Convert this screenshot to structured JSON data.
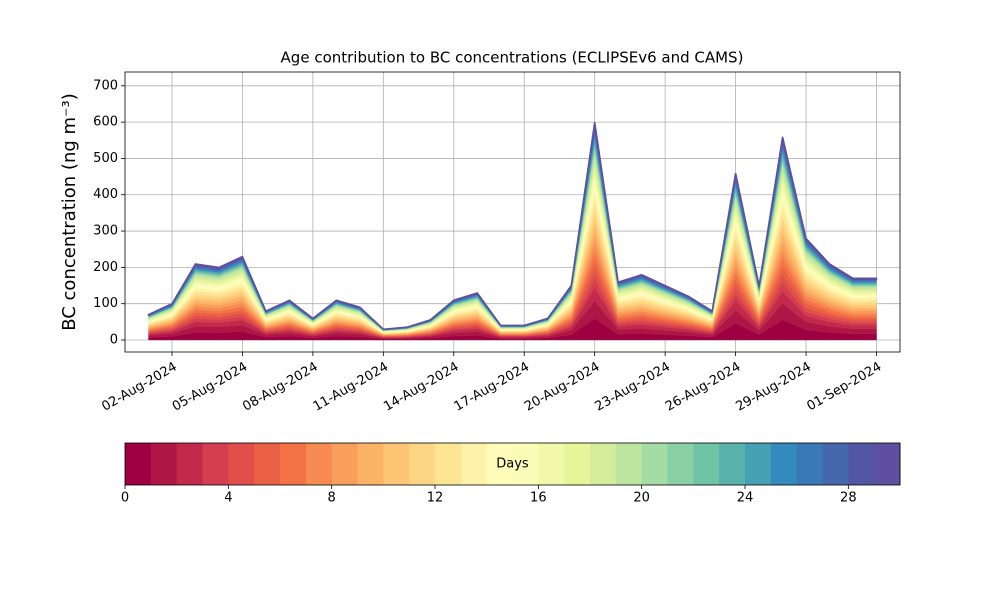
{
  "chart_data": {
    "type": "stacked_area",
    "title": "Age contribution to BC concentrations (ECLIPSEv6 and CAMS)",
    "y_label": "BC concentration (ng m⁻³)",
    "x": [
      "2024-08-01",
      "2024-08-02",
      "2024-08-03",
      "2024-08-04",
      "2024-08-05",
      "2024-08-06",
      "2024-08-07",
      "2024-08-08",
      "2024-08-09",
      "2024-08-10",
      "2024-08-11",
      "2024-08-12",
      "2024-08-13",
      "2024-08-14",
      "2024-08-15",
      "2024-08-16",
      "2024-08-17",
      "2024-08-18",
      "2024-08-19",
      "2024-08-20",
      "2024-08-21",
      "2024-08-22",
      "2024-08-23",
      "2024-08-24",
      "2024-08-25",
      "2024-08-26",
      "2024-08-27",
      "2024-08-28",
      "2024-08-29",
      "2024-08-30",
      "2024-08-31",
      "2024-09-01"
    ],
    "xlim": [
      "2024-07-31",
      "2024-09-02"
    ],
    "xticks": [
      {
        "value": "2024-08-02",
        "label": "02-Aug-2024"
      },
      {
        "value": "2024-08-05",
        "label": "05-Aug-2024"
      },
      {
        "value": "2024-08-08",
        "label": "08-Aug-2024"
      },
      {
        "value": "2024-08-11",
        "label": "11-Aug-2024"
      },
      {
        "value": "2024-08-14",
        "label": "14-Aug-2024"
      },
      {
        "value": "2024-08-17",
        "label": "17-Aug-2024"
      },
      {
        "value": "2024-08-20",
        "label": "20-Aug-2024"
      },
      {
        "value": "2024-08-23",
        "label": "23-Aug-2024"
      },
      {
        "value": "2024-08-26",
        "label": "26-Aug-2024"
      },
      {
        "value": "2024-08-29",
        "label": "29-Aug-2024"
      },
      {
        "value": "2024-09-01",
        "label": "01-Sep-2024"
      }
    ],
    "ylim": [
      -33,
      738
    ],
    "yticks": [
      0,
      100,
      200,
      300,
      400,
      500,
      600,
      700
    ],
    "grid": true,
    "colorbar": {
      "label": "Days",
      "lim": [
        0,
        30
      ],
      "ticks": [
        0,
        4,
        8,
        12,
        16,
        20,
        24,
        28
      ]
    },
    "series": [
      {
        "color": "#9e0142",
        "values": [
          7,
          10,
          21,
          20,
          23,
          8,
          11,
          6,
          11,
          9,
          3,
          3.5,
          5.5,
          11,
          13,
          4,
          4,
          6,
          15,
          60,
          16,
          18,
          15,
          12,
          8,
          46,
          15,
          56,
          28,
          21,
          17,
          17
        ]
      },
      {
        "color": "#ae1745",
        "values": [
          5.6,
          8,
          16.8,
          16,
          18.4,
          6.4,
          8.8,
          4.8,
          8.8,
          7.2,
          2.4,
          2.8,
          4.4,
          8.8,
          10.4,
          3.2,
          3.2,
          4.8,
          12,
          48,
          12.8,
          14.4,
          12,
          9.6,
          6.4,
          36.8,
          12,
          44.8,
          22.4,
          16.8,
          13.6,
          13.6
        ]
      },
      {
        "color": "#c12a4b",
        "values": [
          4.2,
          6,
          12.6,
          12,
          13.8,
          4.8,
          6.6,
          3.6,
          6.6,
          5.4,
          1.8,
          2.1,
          3.3,
          6.6,
          7.8,
          2.4,
          2.4,
          3.6,
          9,
          36,
          9.6,
          10.8,
          9,
          7.2,
          4.8,
          27.6,
          9,
          33.6,
          16.8,
          12.6,
          10.2,
          10.2
        ]
      },
      {
        "color": "#d53e4f",
        "values": [
          2.8,
          4,
          8.4,
          8,
          9.2,
          3.2,
          4.4,
          2.4,
          4.4,
          3.6,
          1.2,
          1.4,
          2.2,
          4.4,
          5.2,
          1.6,
          1.6,
          2.4,
          6,
          24,
          6.4,
          7.2,
          6,
          4.8,
          3.2,
          18.4,
          6,
          22.4,
          11.2,
          8.4,
          6.8,
          6.8
        ]
      },
      {
        "color": "#e04f4a",
        "values": [
          2.8,
          4,
          8.4,
          8,
          9.2,
          3.2,
          4.4,
          2.4,
          4.4,
          3.6,
          1.2,
          1.4,
          2.2,
          4.4,
          5.2,
          1.6,
          1.6,
          2.4,
          6,
          24,
          6.4,
          7.2,
          6,
          4.8,
          3.2,
          18.4,
          6,
          22.4,
          11.2,
          8.4,
          6.8,
          6.8
        ]
      },
      {
        "color": "#ea6045",
        "values": [
          2.8,
          4,
          8.4,
          8,
          9.2,
          3.2,
          4.4,
          2.4,
          4.4,
          3.6,
          1.2,
          1.4,
          2.2,
          4.4,
          5.2,
          1.6,
          1.6,
          2.4,
          6,
          24,
          6.4,
          7.2,
          6,
          4.8,
          3.2,
          18.4,
          6,
          22.4,
          11.2,
          8.4,
          6.8,
          6.8
        ]
      },
      {
        "color": "#f47245",
        "values": [
          2.8,
          4,
          8.4,
          8,
          9.2,
          3.2,
          4.4,
          2.4,
          4.4,
          3.6,
          1.2,
          1.4,
          2.2,
          4.4,
          5.2,
          1.6,
          1.6,
          2.4,
          6,
          24,
          6.4,
          7.2,
          6,
          4.8,
          3.2,
          18.4,
          6,
          22.4,
          11.2,
          8.4,
          6.8,
          6.8
        ]
      },
      {
        "color": "#f68a51",
        "values": [
          2.8,
          4,
          8.4,
          8,
          9.2,
          3.2,
          4.4,
          2.4,
          4.4,
          3.6,
          1.2,
          1.4,
          2.2,
          4.4,
          5.2,
          1.6,
          1.6,
          2.4,
          6,
          24,
          6.4,
          7.2,
          6,
          4.8,
          3.2,
          18.4,
          6,
          22.4,
          11.2,
          8.4,
          6.8,
          6.8
        ]
      },
      {
        "color": "#f99f5c",
        "values": [
          2.8,
          4,
          8.4,
          8,
          9.2,
          3.2,
          4.4,
          2.4,
          4.4,
          3.6,
          1.2,
          1.4,
          2.2,
          4.4,
          5.2,
          1.6,
          1.6,
          2.4,
          6,
          24,
          6.4,
          7.2,
          6,
          4.8,
          3.2,
          18.4,
          6,
          22.4,
          11.2,
          8.4,
          6.8,
          6.8
        ]
      },
      {
        "color": "#fdb365",
        "values": [
          2.8,
          4,
          8.4,
          8,
          9.2,
          3.2,
          4.4,
          2.4,
          4.4,
          3.6,
          1.2,
          1.4,
          2.2,
          4.4,
          5.2,
          1.6,
          1.6,
          2.4,
          6,
          24,
          6.4,
          7.2,
          6,
          4.8,
          3.2,
          18.4,
          6,
          22.4,
          11.2,
          8.4,
          6.8,
          6.8
        ]
      },
      {
        "color": "#fdc574",
        "values": [
          2.8,
          4,
          8.4,
          8,
          9.2,
          3.2,
          4.4,
          2.4,
          4.4,
          3.6,
          1.2,
          1.4,
          2.2,
          4.4,
          5.2,
          1.6,
          1.6,
          2.4,
          6,
          24,
          6.4,
          7.2,
          6,
          4.8,
          3.2,
          18.4,
          6,
          22.4,
          11.2,
          8.4,
          6.8,
          6.8
        ]
      },
      {
        "color": "#fed683",
        "values": [
          2.8,
          4,
          8.4,
          8,
          9.2,
          3.2,
          4.4,
          2.4,
          4.4,
          3.6,
          1.2,
          1.4,
          2.2,
          4.4,
          5.2,
          1.6,
          1.6,
          2.4,
          6,
          24,
          6.4,
          7.2,
          6,
          4.8,
          3.2,
          18.4,
          6,
          22.4,
          11.2,
          8.4,
          6.8,
          6.8
        ]
      },
      {
        "color": "#fee593",
        "values": [
          2.8,
          4,
          8.4,
          8,
          9.2,
          3.2,
          4.4,
          2.4,
          4.4,
          3.6,
          1.2,
          1.4,
          2.2,
          4.4,
          5.2,
          1.6,
          1.6,
          2.4,
          6,
          24,
          6.4,
          7.2,
          6,
          4.8,
          3.2,
          18.4,
          6,
          22.4,
          11.2,
          8.4,
          6.8,
          6.8
        ]
      },
      {
        "color": "#fff1a8",
        "values": [
          2.8,
          4,
          8.4,
          8,
          9.2,
          3.2,
          4.4,
          2.4,
          4.4,
          3.6,
          1.2,
          1.4,
          2.2,
          4.4,
          5.2,
          1.6,
          1.6,
          2.4,
          6,
          24,
          6.4,
          7.2,
          6,
          4.8,
          3.2,
          18.4,
          6,
          22.4,
          11.2,
          8.4,
          6.8,
          6.8
        ]
      },
      {
        "color": "#fffbb8",
        "values": [
          2.1,
          3,
          6.3,
          6,
          6.9,
          2.4,
          3.3,
          1.8,
          3.3,
          2.7,
          0.9,
          1.1,
          1.7,
          3.3,
          3.9,
          1.2,
          1.2,
          1.8,
          4.5,
          18,
          4.8,
          5.4,
          4.5,
          3.6,
          2.4,
          13.8,
          4.5,
          16.8,
          8.4,
          6.3,
          5.1,
          5.1
        ]
      },
      {
        "color": "#fafdb8",
        "values": [
          2.1,
          3,
          6.3,
          6,
          6.9,
          2.4,
          3.3,
          1.8,
          3.3,
          2.7,
          0.9,
          1.1,
          1.7,
          3.3,
          3.9,
          1.2,
          1.2,
          1.8,
          4.5,
          18,
          4.8,
          5.4,
          4.5,
          3.6,
          2.4,
          13.8,
          4.5,
          16.8,
          8.4,
          6.3,
          5.1,
          5.1
        ]
      },
      {
        "color": "#f1f9a9",
        "values": [
          2.1,
          3,
          6.3,
          6,
          6.9,
          2.4,
          3.3,
          1.8,
          3.3,
          2.7,
          0.9,
          1.1,
          1.7,
          3.3,
          3.9,
          1.2,
          1.2,
          1.8,
          4.5,
          18,
          4.8,
          5.4,
          4.5,
          3.6,
          2.4,
          13.8,
          4.5,
          16.8,
          8.4,
          6.3,
          5.1,
          5.1
        ]
      },
      {
        "color": "#e6f598",
        "values": [
          2.1,
          3,
          6.3,
          6,
          6.9,
          2.4,
          3.3,
          1.8,
          3.3,
          2.7,
          0.9,
          1.1,
          1.7,
          3.3,
          3.9,
          1.2,
          1.2,
          1.8,
          4.5,
          18,
          4.8,
          5.4,
          4.5,
          3.6,
          2.4,
          13.8,
          4.5,
          16.8,
          8.4,
          6.3,
          5.1,
          5.1
        ]
      },
      {
        "color": "#d3ed9c",
        "values": [
          2.1,
          3,
          6.3,
          6,
          6.9,
          2.4,
          3.3,
          1.8,
          3.3,
          2.7,
          0.9,
          1.1,
          1.7,
          3.3,
          3.9,
          1.2,
          1.2,
          1.8,
          4.5,
          18,
          4.8,
          5.4,
          4.5,
          3.6,
          2.4,
          13.8,
          4.5,
          16.8,
          8.4,
          6.3,
          5.1,
          5.1
        ]
      },
      {
        "color": "#bee5a0",
        "values": [
          2.1,
          3,
          6.3,
          6,
          6.9,
          2.4,
          3.3,
          1.8,
          3.3,
          2.7,
          0.9,
          1.1,
          1.7,
          3.3,
          3.9,
          1.2,
          1.2,
          1.8,
          4.5,
          18,
          4.8,
          5.4,
          4.5,
          3.6,
          2.4,
          13.8,
          4.5,
          16.8,
          8.4,
          6.3,
          5.1,
          5.1
        ]
      },
      {
        "color": "#a5dba4",
        "values": [
          1,
          1.4,
          2.9,
          2.8,
          3.2,
          1.1,
          1.5,
          0.8,
          1.5,
          1.3,
          0.4,
          0.5,
          0.8,
          1.5,
          1.8,
          0.6,
          0.6,
          0.8,
          2.1,
          8.4,
          2.2,
          2.5,
          2.1,
          1.7,
          1.1,
          6.4,
          2.1,
          7.8,
          3.9,
          2.9,
          2.4,
          2.4
        ]
      },
      {
        "color": "#88cfa4",
        "values": [
          1,
          1.4,
          2.9,
          2.8,
          3.2,
          1.1,
          1.5,
          0.8,
          1.5,
          1.3,
          0.4,
          0.5,
          0.8,
          1.5,
          1.8,
          0.6,
          0.6,
          0.8,
          2.1,
          8.4,
          2.2,
          2.5,
          2.1,
          1.7,
          1.1,
          6.4,
          2.1,
          7.8,
          3.9,
          2.9,
          2.4,
          2.4
        ]
      },
      {
        "color": "#6fc4a5",
        "values": [
          1,
          1.4,
          2.9,
          2.8,
          3.2,
          1.1,
          1.5,
          0.8,
          1.5,
          1.3,
          0.4,
          0.5,
          0.8,
          1.5,
          1.8,
          0.6,
          0.6,
          0.8,
          2.1,
          8.4,
          2.2,
          2.5,
          2.1,
          1.7,
          1.1,
          6.4,
          2.1,
          7.8,
          3.9,
          2.9,
          2.4,
          2.4
        ]
      },
      {
        "color": "#58b2ab",
        "values": [
          1,
          1.4,
          2.9,
          2.8,
          3.2,
          1.1,
          1.5,
          0.8,
          1.5,
          1.3,
          0.4,
          0.5,
          0.8,
          1.5,
          1.8,
          0.6,
          0.6,
          0.8,
          2.1,
          8.4,
          2.2,
          2.5,
          2.1,
          1.7,
          1.1,
          6.4,
          2.1,
          7.8,
          3.9,
          2.9,
          2.4,
          2.4
        ]
      },
      {
        "color": "#45a0b1",
        "values": [
          1,
          1.4,
          2.9,
          2.8,
          3.2,
          1.1,
          1.5,
          0.8,
          1.5,
          1.3,
          0.4,
          0.5,
          0.8,
          1.5,
          1.8,
          0.6,
          0.6,
          0.8,
          2.1,
          8.4,
          2.2,
          2.5,
          2.1,
          1.7,
          1.1,
          6.4,
          2.1,
          7.8,
          3.9,
          2.9,
          2.4,
          2.4
        ]
      },
      {
        "color": "#3489bd",
        "values": [
          1,
          1.4,
          2.9,
          2.8,
          3.2,
          1.1,
          1.5,
          0.8,
          1.5,
          1.3,
          0.4,
          0.5,
          0.8,
          1.5,
          1.8,
          0.6,
          0.6,
          0.8,
          2.1,
          8.4,
          2.2,
          2.5,
          2.1,
          1.7,
          1.1,
          6.4,
          2.1,
          7.8,
          3.9,
          2.9,
          2.4,
          2.4
        ]
      },
      {
        "color": "#3a78b8",
        "values": [
          1,
          1.4,
          2.9,
          2.8,
          3.2,
          1.1,
          1.5,
          0.8,
          1.5,
          1.3,
          0.4,
          0.5,
          0.8,
          1.5,
          1.8,
          0.6,
          0.6,
          0.8,
          2.1,
          8.4,
          2.2,
          2.5,
          2.1,
          1.7,
          1.1,
          6.4,
          2.1,
          7.8,
          3.9,
          2.9,
          2.4,
          2.4
        ]
      },
      {
        "color": "#4567ae",
        "values": [
          1,
          1.4,
          2.9,
          2.8,
          3.2,
          1.1,
          1.5,
          0.8,
          1.5,
          1.3,
          0.4,
          0.5,
          0.8,
          1.5,
          1.8,
          0.6,
          0.6,
          0.8,
          2.1,
          8.4,
          2.2,
          2.5,
          2.1,
          1.7,
          1.1,
          6.4,
          2.1,
          7.8,
          3.9,
          2.9,
          2.4,
          2.4
        ]
      },
      {
        "color": "#5356a5",
        "values": [
          1,
          1.4,
          2.9,
          2.8,
          3.2,
          1.1,
          1.5,
          0.8,
          1.5,
          1.3,
          0.4,
          0.5,
          0.8,
          1.5,
          1.8,
          0.6,
          0.6,
          0.8,
          2.1,
          8.4,
          2.2,
          2.5,
          2.1,
          1.7,
          1.1,
          6.4,
          2.1,
          7.8,
          3.9,
          2.9,
          2.4,
          2.4
        ]
      },
      {
        "color": "#5e4fa2",
        "values": [
          1,
          1.4,
          2.9,
          2.8,
          3.2,
          1.1,
          1.5,
          0.8,
          1.5,
          1.3,
          0.4,
          0.5,
          0.8,
          1.5,
          1.8,
          0.6,
          0.6,
          0.8,
          2.1,
          8.4,
          2.2,
          2.5,
          2.1,
          1.7,
          1.1,
          6.4,
          2.1,
          7.8,
          3.9,
          2.9,
          2.4,
          2.4
        ]
      }
    ]
  }
}
